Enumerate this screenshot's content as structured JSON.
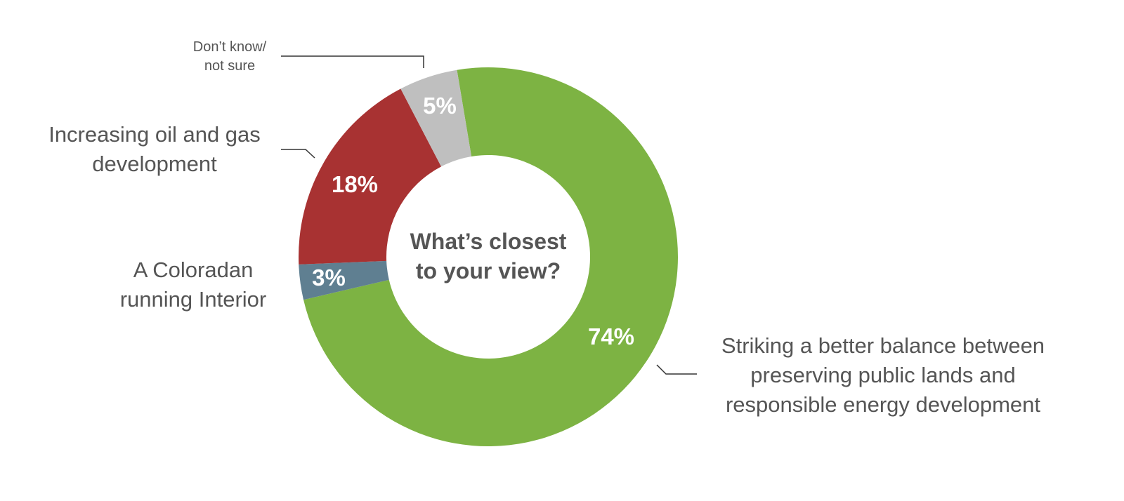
{
  "chart_data": {
    "type": "donut",
    "title": "What’s closest\nto your view?",
    "categories": [
      "Striking a better balance between\npreserving public lands and\nresponsible energy development",
      "A Coloradan\nrunning Interior",
      "Increasing oil and gas\ndevelopment",
      "Don’t know/\nnot sure"
    ],
    "values": [
      74,
      3,
      18,
      5
    ],
    "value_labels": [
      "74%",
      "3%",
      "18%",
      "5%"
    ],
    "colors": [
      "#7db343",
      "#5f7f91",
      "#a83232",
      "#bfbfbf"
    ]
  }
}
